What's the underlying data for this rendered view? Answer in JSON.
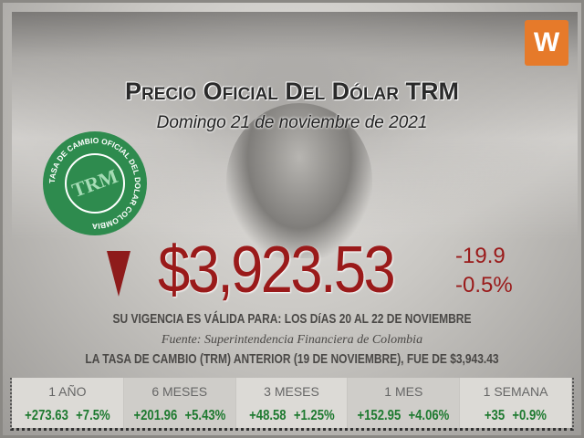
{
  "header": {
    "title": "Precio Oficial Del Dólar TRM",
    "date": "Domingo 21 de noviembre de 2021"
  },
  "logo": {
    "text": "W",
    "color": "#e67a2a"
  },
  "seal": {
    "text": "TASA DE CAMBIO OFICIAL DEL DOLAR COLOMBIA",
    "center": "TRM",
    "color": "#2e8b4e"
  },
  "rate": {
    "price": "$3,923.53",
    "change": "-19.9",
    "change_pct": "-0.5%",
    "direction": "down",
    "color": "#9a1a1a"
  },
  "info": {
    "validity": "SU VIGENCIA ES VÁLIDA PARA: LOS DíAS 20 AL 22 DE NOVIEMBRE",
    "source": "Fuente: Superintendencia Financiera de Colombia",
    "previous": "LA TASA DE CAMBIO (TRM) ANTERIOR (19 DE NOVIEMBRE), FUE DE $3,943.43"
  },
  "stats": [
    {
      "period": "1 AÑO",
      "change": "+273.63",
      "pct": "+7.5%"
    },
    {
      "period": "6 MESES",
      "change": "+201.96",
      "pct": "+5.43%"
    },
    {
      "period": "3 MESES",
      "change": "+48.58",
      "pct": "+1.25%"
    },
    {
      "period": "1 MES",
      "change": "+152.95",
      "pct": "+4.06%"
    },
    {
      "period": "1 SEMANA",
      "change": "+35",
      "pct": "+0.9%"
    }
  ]
}
